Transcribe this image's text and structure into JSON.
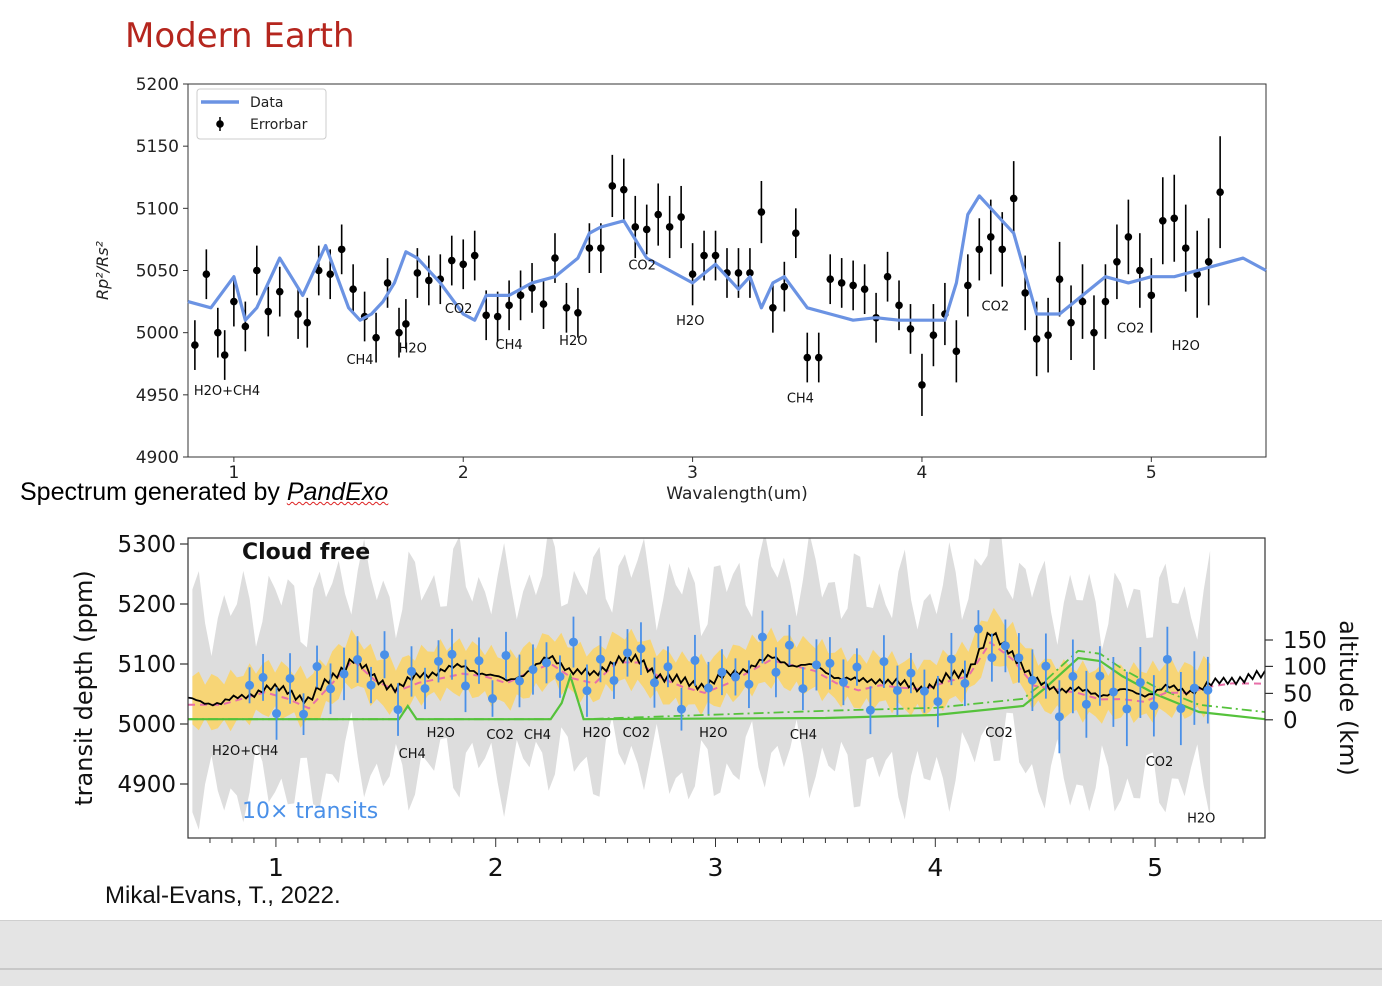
{
  "slide": {
    "title": "Modern Earth",
    "caption_prefix": "Spectrum generated by ",
    "caption_italic": "PandExo",
    "citation": "Mikal-Evans, T., 2022.",
    "colors": {
      "title": "#b5261e",
      "data_line": "#6b93e3",
      "errorbar": "#000000",
      "model_points": "#4a90e8",
      "uncertainty_band": "#f9d46a",
      "altitude_band": "#dddddd",
      "gas_contribution": "#55c23b",
      "model_alt": "#e86fa8"
    }
  },
  "chart_data": [
    {
      "type": "line",
      "xlabel": "Wavalength(um)",
      "ylabel": "Rp²/Rs²",
      "xlim": [
        0.8,
        5.5
      ],
      "ylim": [
        4900,
        5200
      ],
      "xticks": [
        "1",
        "2",
        "3",
        "4",
        "5"
      ],
      "yticks": [
        "4900",
        "4950",
        "5000",
        "5050",
        "5100",
        "5150",
        "5200"
      ],
      "legend": {
        "placement": "top-left",
        "entries": [
          "Data",
          "Errorbar"
        ]
      },
      "series": [
        {
          "name": "Data",
          "x": [
            0.8,
            0.9,
            1.0,
            1.05,
            1.1,
            1.2,
            1.25,
            1.3,
            1.4,
            1.45,
            1.5,
            1.55,
            1.6,
            1.65,
            1.7,
            1.75,
            1.8,
            1.9,
            2.0,
            2.05,
            2.1,
            2.2,
            2.3,
            2.4,
            2.5,
            2.55,
            2.6,
            2.7,
            2.75,
            2.8,
            2.9,
            3.0,
            3.1,
            3.2,
            3.25,
            3.3,
            3.35,
            3.4,
            3.5,
            3.6,
            3.7,
            3.8,
            3.9,
            4.0,
            4.1,
            4.15,
            4.2,
            4.25,
            4.3,
            4.35,
            4.4,
            4.5,
            4.6,
            4.7,
            4.8,
            4.9,
            5.0,
            5.1,
            5.2,
            5.3,
            5.4,
            5.5
          ],
          "y": [
            5025,
            5020,
            5045,
            5010,
            5020,
            5060,
            5045,
            5030,
            5070,
            5045,
            5020,
            5010,
            5015,
            5025,
            5040,
            5065,
            5060,
            5040,
            5015,
            5010,
            5030,
            5030,
            5040,
            5045,
            5060,
            5080,
            5085,
            5090,
            5075,
            5060,
            5050,
            5040,
            5055,
            5035,
            5045,
            5020,
            5040,
            5045,
            5020,
            5015,
            5010,
            5012,
            5010,
            5010,
            5010,
            5040,
            5095,
            5110,
            5100,
            5090,
            5080,
            5015,
            5015,
            5030,
            5045,
            5040,
            5045,
            5045,
            5050,
            5055,
            5060,
            5050
          ]
        },
        {
          "name": "Errorbar",
          "points": [
            [
              0.83,
              4990,
              20
            ],
            [
              0.88,
              5047,
              20
            ],
            [
              0.93,
              5000,
              20
            ],
            [
              0.96,
              4982,
              20
            ],
            [
              1.0,
              5025,
              20
            ],
            [
              1.05,
              5005,
              20
            ],
            [
              1.1,
              5050,
              20
            ],
            [
              1.15,
              5017,
              20
            ],
            [
              1.2,
              5033,
              20
            ],
            [
              1.28,
              5015,
              20
            ],
            [
              1.32,
              5008,
              20
            ],
            [
              1.37,
              5050,
              20
            ],
            [
              1.42,
              5047,
              20
            ],
            [
              1.47,
              5067,
              20
            ],
            [
              1.52,
              5035,
              20
            ],
            [
              1.57,
              5013,
              20
            ],
            [
              1.62,
              4996,
              20
            ],
            [
              1.67,
              5040,
              20
            ],
            [
              1.72,
              5000,
              20
            ],
            [
              1.75,
              5007,
              20
            ],
            [
              1.8,
              5048,
              20
            ],
            [
              1.85,
              5042,
              20
            ],
            [
              1.9,
              5043,
              20
            ],
            [
              1.95,
              5058,
              20
            ],
            [
              2.0,
              5055,
              20
            ],
            [
              2.05,
              5062,
              20
            ],
            [
              2.1,
              5014,
              20
            ],
            [
              2.15,
              5013,
              20
            ],
            [
              2.2,
              5022,
              20
            ],
            [
              2.25,
              5030,
              20
            ],
            [
              2.3,
              5036,
              20
            ],
            [
              2.35,
              5023,
              20
            ],
            [
              2.4,
              5060,
              20
            ],
            [
              2.45,
              5020,
              20
            ],
            [
              2.5,
              5016,
              20
            ],
            [
              2.55,
              5068,
              20
            ],
            [
              2.6,
              5068,
              20
            ],
            [
              2.65,
              5118,
              25
            ],
            [
              2.7,
              5115,
              25
            ],
            [
              2.75,
              5085,
              25
            ],
            [
              2.8,
              5083,
              20
            ],
            [
              2.85,
              5095,
              25
            ],
            [
              2.9,
              5085,
              25
            ],
            [
              2.95,
              5093,
              25
            ],
            [
              3.0,
              5047,
              25
            ],
            [
              3.05,
              5062,
              20
            ],
            [
              3.1,
              5062,
              20
            ],
            [
              3.15,
              5048,
              20
            ],
            [
              3.2,
              5048,
              20
            ],
            [
              3.25,
              5048,
              20
            ],
            [
              3.3,
              5097,
              25
            ],
            [
              3.35,
              5020,
              20
            ],
            [
              3.4,
              5037,
              20
            ],
            [
              3.45,
              5080,
              20
            ],
            [
              3.5,
              4980,
              20
            ],
            [
              3.55,
              4980,
              20
            ],
            [
              3.6,
              5043,
              20
            ],
            [
              3.65,
              5040,
              20
            ],
            [
              3.7,
              5038,
              20
            ],
            [
              3.75,
              5035,
              20
            ],
            [
              3.8,
              5012,
              20
            ],
            [
              3.85,
              5045,
              20
            ],
            [
              3.9,
              5022,
              20
            ],
            [
              3.95,
              5003,
              20
            ],
            [
              4.0,
              4958,
              25
            ],
            [
              4.05,
              4998,
              25
            ],
            [
              4.1,
              5015,
              25
            ],
            [
              4.15,
              4985,
              25
            ],
            [
              4.2,
              5038,
              25
            ],
            [
              4.25,
              5067,
              25
            ],
            [
              4.3,
              5077,
              30
            ],
            [
              4.35,
              5067,
              30
            ],
            [
              4.4,
              5108,
              30
            ],
            [
              4.45,
              5032,
              30
            ],
            [
              4.5,
              4995,
              30
            ],
            [
              4.55,
              4998,
              30
            ],
            [
              4.6,
              5043,
              30
            ],
            [
              4.65,
              5008,
              30
            ],
            [
              4.7,
              5025,
              30
            ],
            [
              4.75,
              5000,
              30
            ],
            [
              4.8,
              5025,
              30
            ],
            [
              4.85,
              5057,
              30
            ],
            [
              4.9,
              5077,
              30
            ],
            [
              4.95,
              5050,
              30
            ],
            [
              5.0,
              5030,
              30
            ],
            [
              5.05,
              5090,
              35
            ],
            [
              5.1,
              5092,
              35
            ],
            [
              5.15,
              5068,
              35
            ],
            [
              5.2,
              5047,
              35
            ],
            [
              5.25,
              5057,
              35
            ],
            [
              5.3,
              5113,
              45
            ]
          ]
        }
      ],
      "annotations": [
        {
          "text": "H2O+CH4",
          "x": 0.97,
          "y": 4950
        },
        {
          "text": "CH4",
          "x": 1.55,
          "y": 4975
        },
        {
          "text": "H2O",
          "x": 1.78,
          "y": 4984
        },
        {
          "text": "CO2",
          "x": 1.98,
          "y": 5016
        },
        {
          "text": "CH4",
          "x": 2.2,
          "y": 4987
        },
        {
          "text": "H2O",
          "x": 2.48,
          "y": 4990
        },
        {
          "text": "CO2",
          "x": 2.78,
          "y": 5051
        },
        {
          "text": "H2O",
          "x": 2.99,
          "y": 5006
        },
        {
          "text": "CH4",
          "x": 3.47,
          "y": 4944
        },
        {
          "text": "CO2",
          "x": 4.32,
          "y": 5018
        },
        {
          "text": "CO2",
          "x": 4.91,
          "y": 5000
        },
        {
          "text": "H2O",
          "x": 5.15,
          "y": 4986
        }
      ]
    },
    {
      "type": "line",
      "panel_title": "Cloud free",
      "ylabel": "transit depth (ppm)",
      "y2label": "altitude (km)",
      "xlim": [
        0.6,
        5.5
      ],
      "ylim": [
        4810,
        5310
      ],
      "xticks": [
        "1",
        "2",
        "3",
        "4",
        "5"
      ],
      "yticks": [
        "4900",
        "5000",
        "5100",
        "5200",
        "5300"
      ],
      "y2ticks": [
        "0",
        "50",
        "100",
        "150"
      ],
      "note": "10× transits",
      "series": [
        {
          "name": "model",
          "x": [
            0.6,
            0.75,
            0.85,
            0.95,
            1.05,
            1.15,
            1.25,
            1.35,
            1.45,
            1.55,
            1.65,
            1.75,
            1.85,
            1.95,
            2.05,
            2.15,
            2.25,
            2.35,
            2.45,
            2.55,
            2.65,
            2.75,
            2.85,
            2.95,
            3.05,
            3.15,
            3.25,
            3.35,
            3.45,
            3.55,
            3.65,
            3.75,
            3.85,
            3.95,
            4.05,
            4.15,
            4.25,
            4.35,
            4.45,
            4.55,
            4.65,
            4.75,
            4.85,
            4.95,
            5.05,
            5.15,
            5.25,
            5.35,
            5.5
          ],
          "y": [
            5040,
            5035,
            5045,
            5060,
            5055,
            5040,
            5075,
            5110,
            5075,
            5060,
            5080,
            5090,
            5095,
            5085,
            5070,
            5090,
            5110,
            5090,
            5080,
            5110,
            5105,
            5080,
            5070,
            5065,
            5080,
            5095,
            5110,
            5100,
            5095,
            5080,
            5070,
            5075,
            5065,
            5060,
            5075,
            5090,
            5150,
            5120,
            5070,
            5060,
            5055,
            5050,
            5055,
            5050,
            5060,
            5055,
            5065,
            5075,
            5080
          ]
        },
        {
          "name": "gas contribution",
          "x": [
            0.6,
            1.5,
            1.56,
            1.6,
            1.64,
            2.25,
            2.3,
            2.34,
            2.4,
            3.5,
            4.0,
            4.4,
            4.5,
            4.65,
            4.75,
            4.85,
            5.0,
            5.2,
            5.5
          ],
          "y": [
            5008,
            5008,
            5008,
            5030,
            5008,
            5008,
            5035,
            5080,
            5008,
            5010,
            5015,
            5030,
            5060,
            5110,
            5105,
            5080,
            5050,
            5020,
            5008
          ]
        }
      ],
      "annotations": [
        {
          "text": "H2O+CH4",
          "x": 0.86,
          "y": 4948
        },
        {
          "text": "CH4",
          "x": 1.62,
          "y": 4943
        },
        {
          "text": "H2O",
          "x": 1.75,
          "y": 4978
        },
        {
          "text": "CO2",
          "x": 2.02,
          "y": 4975
        },
        {
          "text": "CH4",
          "x": 2.19,
          "y": 4975
        },
        {
          "text": "H2O",
          "x": 2.46,
          "y": 4978
        },
        {
          "text": "CO2",
          "x": 2.64,
          "y": 4978
        },
        {
          "text": "H2O",
          "x": 2.99,
          "y": 4978
        },
        {
          "text": "CH4",
          "x": 3.4,
          "y": 4975
        },
        {
          "text": "CO2",
          "x": 4.29,
          "y": 4978
        },
        {
          "text": "CO2",
          "x": 5.02,
          "y": 4930
        },
        {
          "text": "H2O",
          "x": 5.21,
          "y": 4836
        }
      ]
    }
  ]
}
